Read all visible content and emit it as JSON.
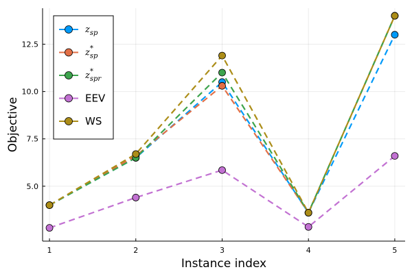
{
  "chart_data": {
    "type": "line",
    "xlabel": "Instance index",
    "ylabel": "Objective",
    "x": [
      1,
      2,
      3,
      4,
      5
    ],
    "xticks": [
      "1",
      "2",
      "3",
      "4",
      "5"
    ],
    "yticks": [
      5.0,
      7.5,
      10.0,
      12.5
    ],
    "ytick_labels": [
      "5.0",
      "7.5",
      "10.0",
      "12.5"
    ],
    "xlim": [
      0.92,
      5.12
    ],
    "ylim": [
      2.1,
      14.4
    ],
    "grid": true,
    "legend_position": "top-left",
    "series": [
      {
        "name": "z_sp",
        "label_main": "z",
        "label_sub": "sp",
        "label_sup": "",
        "color": "#009af9",
        "values": [
          4.0,
          6.5,
          10.5,
          3.6,
          13.0
        ]
      },
      {
        "name": "z*_sp",
        "label_main": "z",
        "label_sub": "sp",
        "label_sup": "*",
        "color": "#e26f46",
        "values": [
          4.0,
          6.6,
          10.3,
          3.6,
          14.0
        ]
      },
      {
        "name": "z*_spr",
        "label_main": "z",
        "label_sub": "spr",
        "label_sup": "*",
        "color": "#3da44d",
        "values": [
          4.0,
          6.5,
          11.0,
          3.6,
          14.0
        ]
      },
      {
        "name": "EEV",
        "label_main": "EEV",
        "label_sub": "",
        "label_sup": "",
        "color": "#c271d2",
        "values": [
          2.8,
          4.4,
          5.85,
          2.85,
          6.6
        ]
      },
      {
        "name": "WS",
        "label_main": "WS",
        "label_sub": "",
        "label_sup": "",
        "color": "#ac8d18",
        "values": [
          4.0,
          6.7,
          11.9,
          3.6,
          14.0
        ]
      }
    ]
  }
}
